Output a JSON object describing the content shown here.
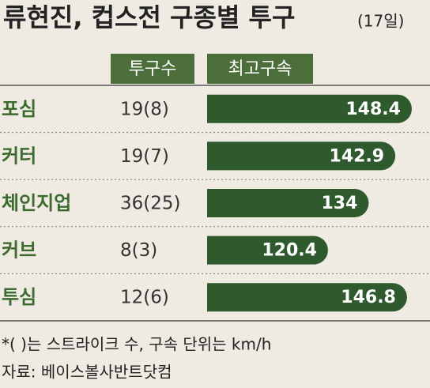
{
  "chart_data": {
    "type": "bar",
    "title": "류현진, 컵스전 구종별 투구",
    "subtitle": "(17일)",
    "columns": [
      "투구수",
      "최고구속"
    ],
    "categories": [
      "포심",
      "커터",
      "체인지업",
      "커브",
      "투심"
    ],
    "pitch_counts": [
      "19(8)",
      "19(7)",
      "36(25)",
      "8(3)",
      "12(6)"
    ],
    "values": [
      148.4,
      142.9,
      134,
      120.4,
      146.8
    ],
    "color": "#2e5a2e",
    "xlim": [
      80,
      150
    ],
    "notes": [
      "*( )는 스트라이크 수, 구속 단위는 km/h",
      "자료: 베이스볼사반트닷컴"
    ]
  }
}
